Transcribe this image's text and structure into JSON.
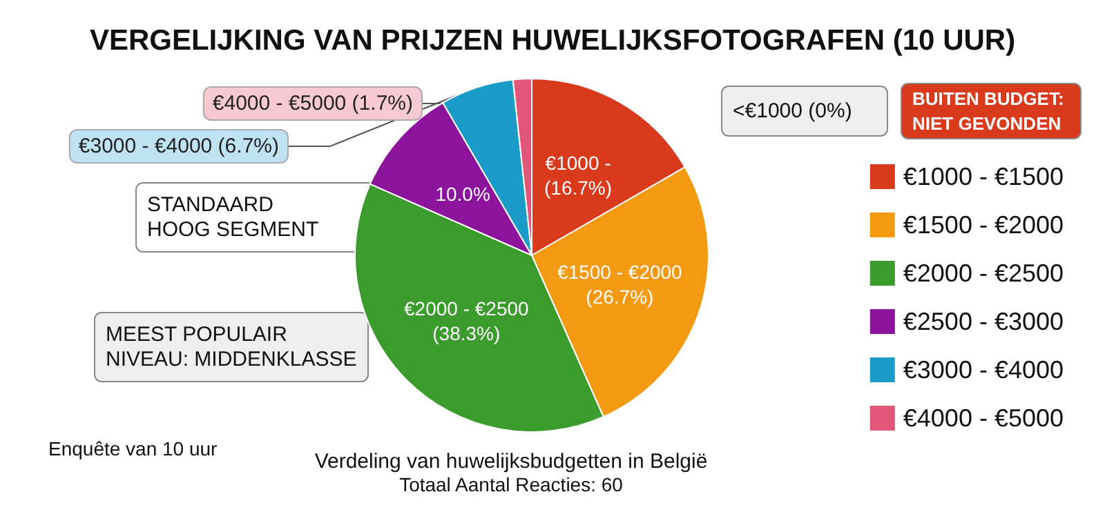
{
  "chart_data": {
    "type": "pie",
    "title": "VERGELIJKING VAN PRIJZEN HUWELIJKSFOTOGRAFEN (10 UUR)",
    "subtitle": "Verdeling van huwelijksbudgetten in België\nTotaal Aantal Reacties: 60",
    "categories": [
      "€1000 - €1500",
      "€1500 - €2000",
      "€2000 - €2500",
      "€2500 - €3000",
      "€3000 - €4000",
      "€4000 - €5000"
    ],
    "values": [
      16.7,
      26.7,
      38.3,
      10.0,
      6.7,
      1.7
    ],
    "colors": [
      "#d93a1c",
      "#f39a12",
      "#3b9b2c",
      "#8c139c",
      "#1b9bc8",
      "#e2567a"
    ],
    "value_labels": [
      "€1000 -\n(16.7%)",
      "€1500 - €2000\n(26.7%)",
      "€2000 - €2500\n(38.3%)",
      "10.0%",
      "€3000 - €4000 (6.7%)",
      "€4000 - €5000 (1.7%)"
    ],
    "annotations": [
      "<€1000 (0%)",
      "BUITEN BUDGET:\nNIET GEVONDEN",
      "STANDAARD\nHOOG SEGMENT",
      "MEEST POPULAIR\nNIVEAU: MIDDENKLASSE",
      "Enquête van 10 uur"
    ],
    "legend": "right"
  }
}
